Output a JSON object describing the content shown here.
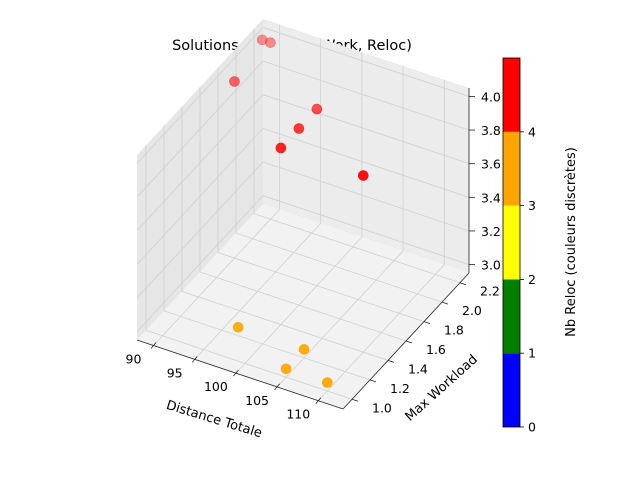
{
  "chart_data": {
    "type": "scatter",
    "title": "Solutions 3D : (Dist, Work, Reloc)",
    "xlabel": "Distance Totale",
    "ylabel": "Max Workload",
    "zlabel": "",
    "xlim": [
      88,
      113
    ],
    "ylim": [
      0.9,
      2.3
    ],
    "zlim": [
      2.95,
      4.05
    ],
    "x_ticks": [
      "90",
      "95",
      "100",
      "105",
      "110"
    ],
    "y_ticks": [
      "1.0",
      "1.2",
      "1.4",
      "1.6",
      "1.8",
      "2.0",
      "2.2"
    ],
    "z_ticks": [
      "3.0",
      "3.2",
      "3.4",
      "3.6",
      "3.8",
      "4.0"
    ],
    "grid": true,
    "points": [
      {
        "x": 89,
        "y": 2.2,
        "z": 4.0,
        "reloc": 4
      },
      {
        "x": 90,
        "y": 2.2,
        "z": 4.0,
        "reloc": 4
      },
      {
        "x": 90,
        "y": 1.8,
        "z": 4.0,
        "reloc": 4
      },
      {
        "x": 100,
        "y": 1.8,
        "z": 4.0,
        "reloc": 4
      },
      {
        "x": 100,
        "y": 1.6,
        "z": 4.0,
        "reloc": 4
      },
      {
        "x": 100,
        "y": 1.4,
        "z": 4.0,
        "reloc": 4
      },
      {
        "x": 110,
        "y": 1.4,
        "z": 4.0,
        "reloc": 4
      },
      {
        "x": 97,
        "y": 1.2,
        "z": 3.0,
        "reloc": 3
      },
      {
        "x": 105,
        "y": 1.2,
        "z": 3.0,
        "reloc": 3
      },
      {
        "x": 105,
        "y": 1.0,
        "z": 3.0,
        "reloc": 3
      },
      {
        "x": 110,
        "y": 1.0,
        "z": 3.0,
        "reloc": 3
      }
    ],
    "colorbar": {
      "label": "Nb Reloc (couleurs discrètes)",
      "ticks": [
        "0",
        "1",
        "2",
        "3",
        "4"
      ],
      "range": [
        0,
        5
      ],
      "colors": [
        "#0000ff",
        "#008000",
        "#ffff00",
        "#ffa500",
        "#ff0000"
      ]
    }
  }
}
